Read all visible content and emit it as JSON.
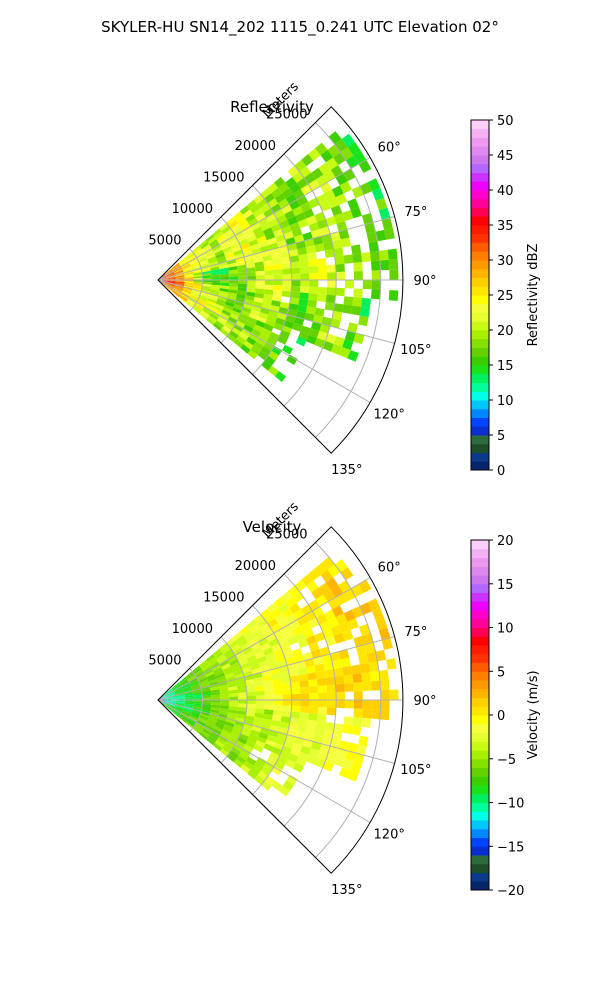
{
  "figure": {
    "title": "SKYLER-HU  SN14_202  1115_0.241 UTC Elevation 02°"
  },
  "chart_data": [
    {
      "type": "heatmap",
      "subtype": "polar-sector",
      "title": "Reflectivity",
      "range_label": "Meters",
      "range_ticks": [
        5000,
        10000,
        15000,
        20000,
        25000
      ],
      "range_max": 27500,
      "azimuth_ticks": [
        60,
        75,
        90,
        105,
        120,
        135
      ],
      "azimuth_tick_labels": [
        "60°",
        "75°",
        "90°",
        "105°",
        "120°",
        "135°"
      ],
      "azimuth_range": [
        45,
        135
      ],
      "grid": true,
      "colorbar": {
        "label": "Reflectivity dBZ",
        "min": 0,
        "max": 50,
        "ticks": [
          0,
          5,
          10,
          15,
          20,
          25,
          30,
          35,
          40,
          45,
          50
        ],
        "tick_labels": [
          "0",
          "5",
          "10",
          "15",
          "20",
          "25",
          "30",
          "35",
          "40",
          "45",
          "50"
        ],
        "colors": [
          "#08246b",
          "#0a3a8a",
          "#1f4f2a",
          "#2e6b3c",
          "#0b2fcf",
          "#0044ff",
          "#0088ff",
          "#00c8ff",
          "#00ffe6",
          "#00ff99",
          "#00f060",
          "#1be31b",
          "#3ccf00",
          "#63d200",
          "#86e000",
          "#a8ef00",
          "#c8fa14",
          "#e6ff2e",
          "#f5ff3c",
          "#ffff00",
          "#ffe600",
          "#ffd000",
          "#ffb400",
          "#ff9900",
          "#ff7e00",
          "#ff5c00",
          "#ff3300",
          "#ff1a00",
          "#ff0000",
          "#ff0055",
          "#ff0099",
          "#ff00cc",
          "#ee00ff",
          "#cc33ff",
          "#b266ff",
          "#cc77ee",
          "#dd88ee",
          "#ee99f0",
          "#f5b0f5",
          "#fbd0fb"
        ]
      },
      "field": {
        "description_units": "dBZ",
        "sectors": [
          {
            "az_start": 50,
            "az_end": 80,
            "r_start": 0,
            "r_end": 27000,
            "values_by_range_km": [
              32,
              30,
              28,
              25,
              23,
              22,
              21,
              20,
              21,
              22,
              23,
              22,
              21,
              20,
              20,
              19,
              19,
              18,
              19,
              20,
              20,
              19,
              18,
              18,
              17,
              17,
              16
            ]
          },
          {
            "az_start": 80,
            "az_end": 95,
            "r_start": 0,
            "r_end": 27000,
            "values_by_range_km": [
              34,
              33,
              30,
              26,
              20,
              16,
              15,
              15,
              16,
              18,
              20,
              21,
              22,
              22,
              21,
              20,
              21,
              22,
              22,
              21,
              20,
              20,
              19,
              19,
              18,
              18,
              17
            ]
          },
          {
            "az_start": 95,
            "az_end": 112,
            "r_start": 0,
            "r_end": 24000,
            "values_by_range_km": [
              35,
              34,
              31,
              27,
              24,
              22,
              20,
              18,
              17,
              18,
              19,
              20,
              21,
              20,
              19,
              18,
              17,
              17,
              18,
              19,
              19,
              18,
              17,
              16
            ]
          },
          {
            "az_start": 112,
            "az_end": 128,
            "r_start": 0,
            "r_end": 18000,
            "values_by_range_km": [
              31,
              30,
              28,
              26,
              24,
              23,
              22,
              21,
              20,
              20,
              19,
              19,
              18,
              18,
              17,
              17,
              16,
              16
            ]
          }
        ]
      }
    },
    {
      "type": "heatmap",
      "subtype": "polar-sector",
      "title": "Velocity",
      "range_label": "Meters",
      "range_ticks": [
        5000,
        10000,
        15000,
        20000,
        25000
      ],
      "range_max": 27500,
      "azimuth_ticks": [
        60,
        75,
        90,
        105,
        120,
        135
      ],
      "azimuth_tick_labels": [
        "60°",
        "75°",
        "90°",
        "105°",
        "120°",
        "135°"
      ],
      "azimuth_range": [
        45,
        135
      ],
      "grid": true,
      "colorbar": {
        "label": "Velocity (m/s)",
        "min": -20,
        "max": 20,
        "ticks": [
          -20,
          -15,
          -10,
          -5,
          0,
          5,
          10,
          15,
          20
        ],
        "tick_labels": [
          "−20",
          "−15",
          "−10",
          "−5",
          "0",
          "5",
          "10",
          "15",
          "20"
        ],
        "colors": [
          "#08246b",
          "#0a3a8a",
          "#1f4f2a",
          "#2e6b3c",
          "#0b2fcf",
          "#0044ff",
          "#0088ff",
          "#00c8ff",
          "#00ffe6",
          "#00ff99",
          "#00f060",
          "#1be31b",
          "#3ccf00",
          "#63d200",
          "#86e000",
          "#a8ef00",
          "#c8fa14",
          "#e6ff2e",
          "#f5ff3c",
          "#ffff00",
          "#ffe600",
          "#ffd000",
          "#ffb400",
          "#ff9900",
          "#ff7e00",
          "#ff5c00",
          "#ff3300",
          "#ff1a00",
          "#ff0000",
          "#ff0055",
          "#ff0099",
          "#ff00cc",
          "#ee00ff",
          "#cc33ff",
          "#b266ff",
          "#cc77ee",
          "#dd88ee",
          "#ee99f0",
          "#f5b0f5",
          "#fbd0fb"
        ]
      },
      "field": {
        "description_units": "m/s",
        "sectors": [
          {
            "az_start": 50,
            "az_end": 80,
            "r_start": 0,
            "r_end": 27000,
            "values_by_range_km": [
              -11,
              -10,
              -9,
              -8,
              -7,
              -6,
              -5,
              -5,
              -4,
              -4,
              -3,
              -3,
              -2,
              -2,
              -2,
              -1,
              -1,
              -1,
              0,
              0,
              0,
              0,
              1,
              1,
              1,
              1,
              1
            ]
          },
          {
            "az_start": 80,
            "az_end": 95,
            "r_start": 0,
            "r_end": 27000,
            "values_by_range_km": [
              -12,
              -11,
              -10,
              -9,
              -8,
              -7,
              -6,
              -5,
              -4,
              -3,
              -3,
              -2,
              -2,
              -1,
              -1,
              0,
              0,
              0,
              0,
              1,
              1,
              1,
              1,
              1,
              1,
              1,
              1
            ]
          },
          {
            "az_start": 95,
            "az_end": 112,
            "r_start": 0,
            "r_end": 24000,
            "values_by_range_km": [
              -12,
              -11,
              -10,
              -9,
              -8,
              -7,
              -6,
              -6,
              -5,
              -5,
              -4,
              -4,
              -4,
              -3,
              -3,
              -3,
              -2,
              -2,
              -2,
              -2,
              -1,
              -1,
              -1,
              -1
            ]
          },
          {
            "az_start": 112,
            "az_end": 128,
            "r_start": 0,
            "r_end": 18000,
            "values_by_range_km": [
              -9,
              -8,
              -8,
              -7,
              -7,
              -6,
              -6,
              -6,
              -5,
              -5,
              -5,
              -4,
              -4,
              -4,
              -3,
              -3,
              -3,
              -3
            ]
          }
        ]
      }
    }
  ]
}
